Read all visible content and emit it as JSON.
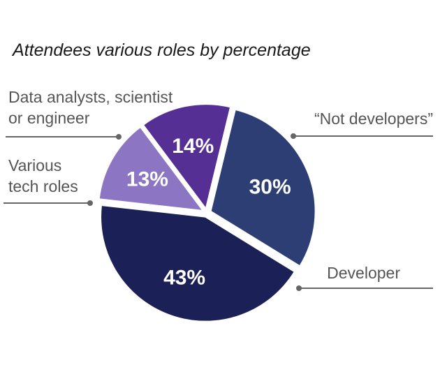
{
  "chart_data": {
    "type": "pie",
    "title": "Attendees various roles by percentage",
    "slices": [
      {
        "label": "“Not developers”",
        "value": 30,
        "value_label": "30%",
        "color": "#2d3e74"
      },
      {
        "label": "Developer",
        "value": 43,
        "value_label": "43%",
        "color": "#1b2157"
      },
      {
        "label": "Various tech roles",
        "label_lines": [
          "Various",
          "tech roles"
        ],
        "value": 13,
        "value_label": "13%",
        "color": "#8c76c4"
      },
      {
        "label": "Data analysts, scientist or engineer",
        "label_lines": [
          "Data analysts, scientist",
          "or engineer"
        ],
        "value": 14,
        "value_label": "14%",
        "color": "#552f94"
      }
    ]
  }
}
